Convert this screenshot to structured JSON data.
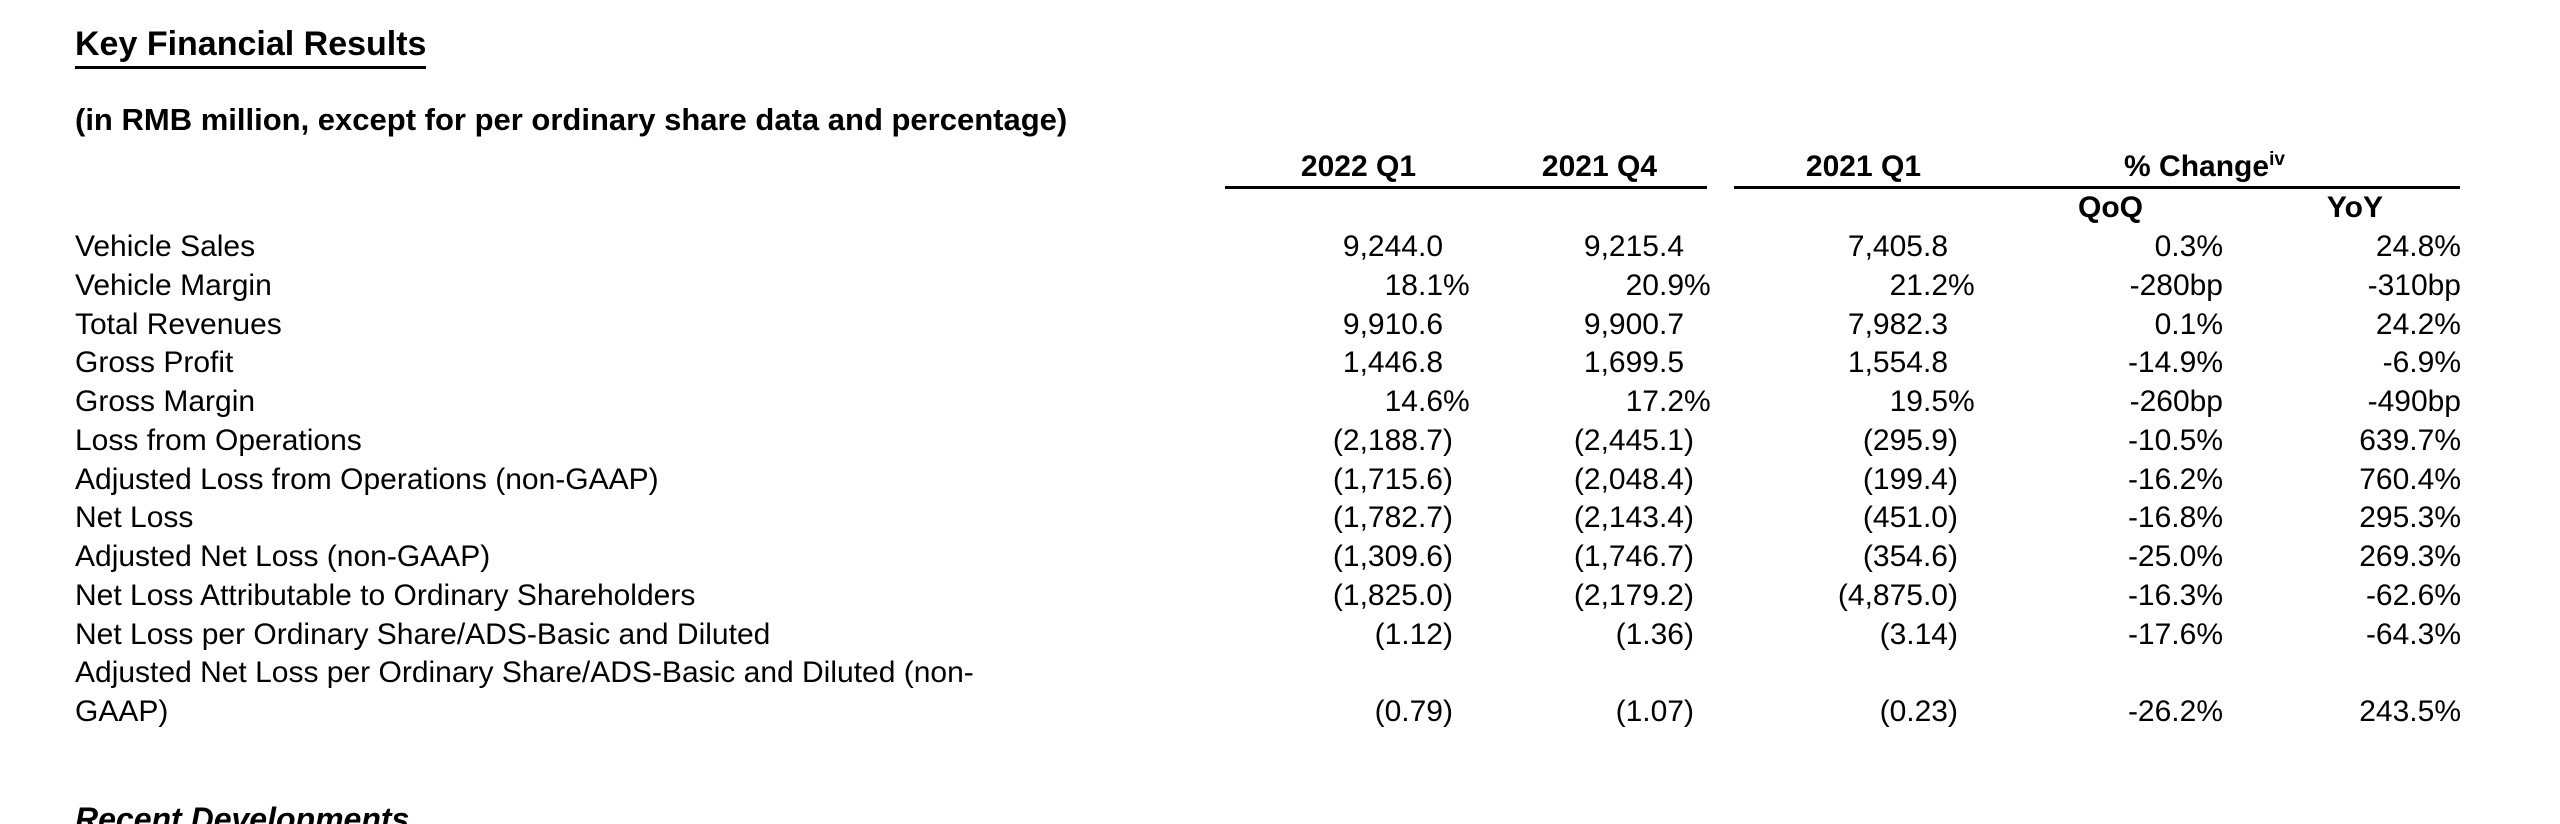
{
  "document": {
    "title": "Key Financial Results",
    "subtitle": "(in RMB million, except for per ordinary share data and percentage)",
    "next_section_title": "Recent Developments"
  },
  "table": {
    "period_headers": [
      "2022 Q1",
      "2021 Q4",
      "2021 Q1"
    ],
    "change_header": {
      "label": "% Change",
      "footnote": "iv"
    },
    "subheaders": [
      "QoQ",
      "YoY"
    ],
    "rows": [
      {
        "label": "Vehicle Sales",
        "q1_2022": "9,244.0",
        "q4_2021": "9,215.4",
        "q1_2021": "7,405.8",
        "qoq": "0.3%",
        "yoy": "24.8%"
      },
      {
        "label": "Vehicle Margin",
        "q1_2022": "18.1%",
        "q4_2021": "20.9%",
        "q1_2021": "21.2%",
        "qoq": "-280bp",
        "yoy": "-310bp"
      },
      {
        "label": "Total Revenues",
        "q1_2022": "9,910.6",
        "q4_2021": "9,900.7",
        "q1_2021": "7,982.3",
        "qoq": "0.1%",
        "yoy": "24.2%"
      },
      {
        "label": "Gross Profit",
        "q1_2022": "1,446.8",
        "q4_2021": "1,699.5",
        "q1_2021": "1,554.8",
        "qoq": "-14.9%",
        "yoy": "-6.9%"
      },
      {
        "label": "Gross Margin",
        "q1_2022": "14.6%",
        "q4_2021": "17.2%",
        "q1_2021": "19.5%",
        "qoq": "-260bp",
        "yoy": "-490bp"
      },
      {
        "label": "Loss from Operations",
        "q1_2022": "(2,188.7)",
        "q4_2021": "(2,445.1)",
        "q1_2021": "(295.9)",
        "qoq": "-10.5%",
        "yoy": "639.7%"
      },
      {
        "label": "Adjusted Loss from Operations (non-GAAP)",
        "q1_2022": "(1,715.6)",
        "q4_2021": "(2,048.4)",
        "q1_2021": "(199.4)",
        "qoq": "-16.2%",
        "yoy": "760.4%"
      },
      {
        "label": "Net Loss",
        "q1_2022": "(1,782.7)",
        "q4_2021": "(2,143.4)",
        "q1_2021": "(451.0)",
        "qoq": "-16.8%",
        "yoy": "295.3%"
      },
      {
        "label": "Adjusted Net Loss (non-GAAP)",
        "q1_2022": "(1,309.6)",
        "q4_2021": "(1,746.7)",
        "q1_2021": "(354.6)",
        "qoq": "-25.0%",
        "yoy": "269.3%"
      },
      {
        "label": "Net Loss Attributable to Ordinary Shareholders",
        "q1_2022": "(1,825.0)",
        "q4_2021": "(2,179.2)",
        "q1_2021": "(4,875.0)",
        "qoq": "-16.3%",
        "yoy": "-62.6%"
      },
      {
        "label": "Net Loss per Ordinary Share/ADS-Basic and Diluted",
        "q1_2022": "(1.12)",
        "q4_2021": "(1.36)",
        "q1_2021": "(3.14)",
        "qoq": "-17.6%",
        "yoy": "-64.3%"
      },
      {
        "label": "Adjusted Net Loss per Ordinary Share/ADS-Basic and Diluted (non-GAAP)",
        "q1_2022": "(0.79)",
        "q4_2021": "(1.07)",
        "q1_2021": "(0.23)",
        "qoq": "-26.2%",
        "yoy": "243.5%"
      }
    ]
  },
  "colors": {
    "text": "#000000",
    "background": "#ffffff",
    "rule": "#000000"
  }
}
